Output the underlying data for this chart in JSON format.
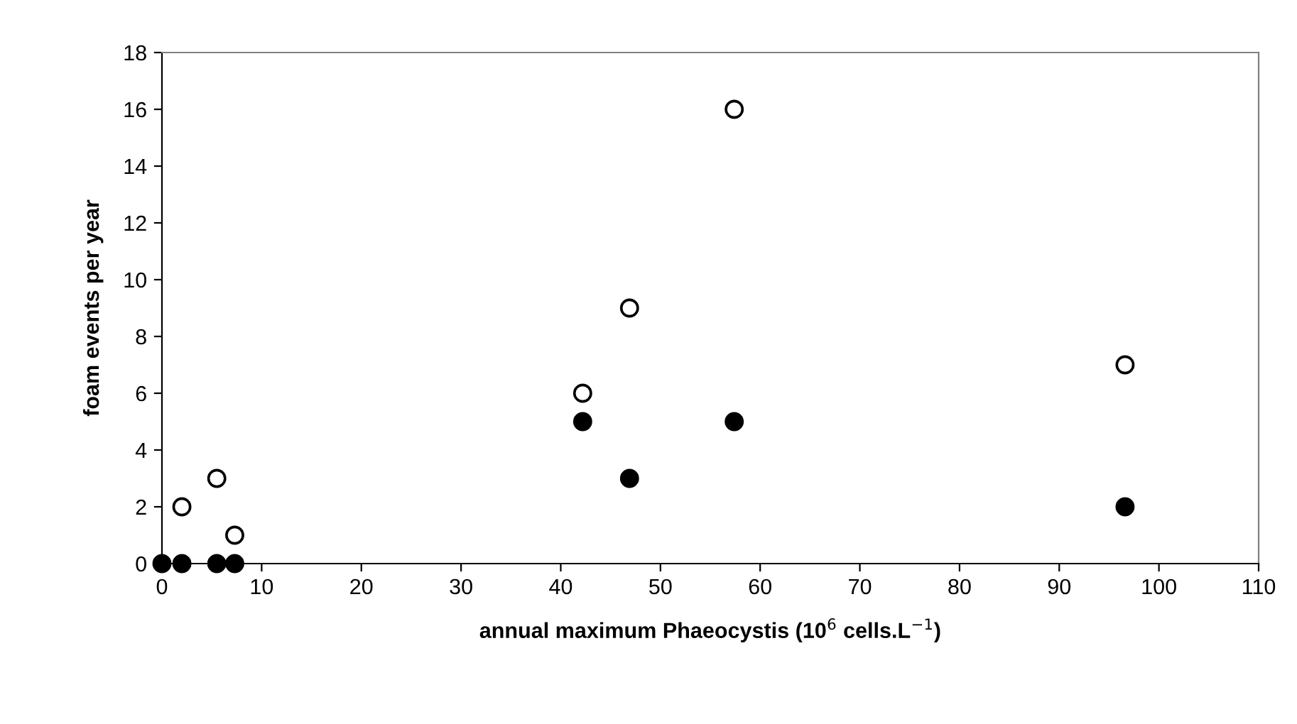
{
  "chart_data": {
    "type": "scatter",
    "xlabel": "annual maximum Phaeocystis (10$^{6}$ cells.L$^{−1}$)",
    "ylabel": "foam events per year",
    "xlim": [
      0,
      110
    ],
    "xticks": [
      0,
      10,
      20,
      30,
      40,
      50,
      60,
      70,
      80,
      90,
      100,
      110
    ],
    "ylim": [
      0,
      18
    ],
    "yticks": [
      0,
      2,
      4,
      6,
      8,
      10,
      12,
      14,
      16,
      18
    ],
    "grid": false,
    "legend": false,
    "marker": "circle",
    "series": [
      {
        "color": "#ffffff",
        "x": [
          2,
          5.5,
          7.3,
          42.2,
          46.9,
          57.4,
          96.6
        ],
        "values": [
          2,
          3,
          1,
          6,
          9,
          16,
          7
        ]
      },
      {
        "color": "#000000",
        "x": [
          0,
          2,
          5.5,
          7.3,
          42.2,
          46.9,
          57.4,
          96.6
        ],
        "values": [
          0,
          0,
          0,
          0,
          5,
          3,
          5,
          2
        ]
      }
    ]
  }
}
